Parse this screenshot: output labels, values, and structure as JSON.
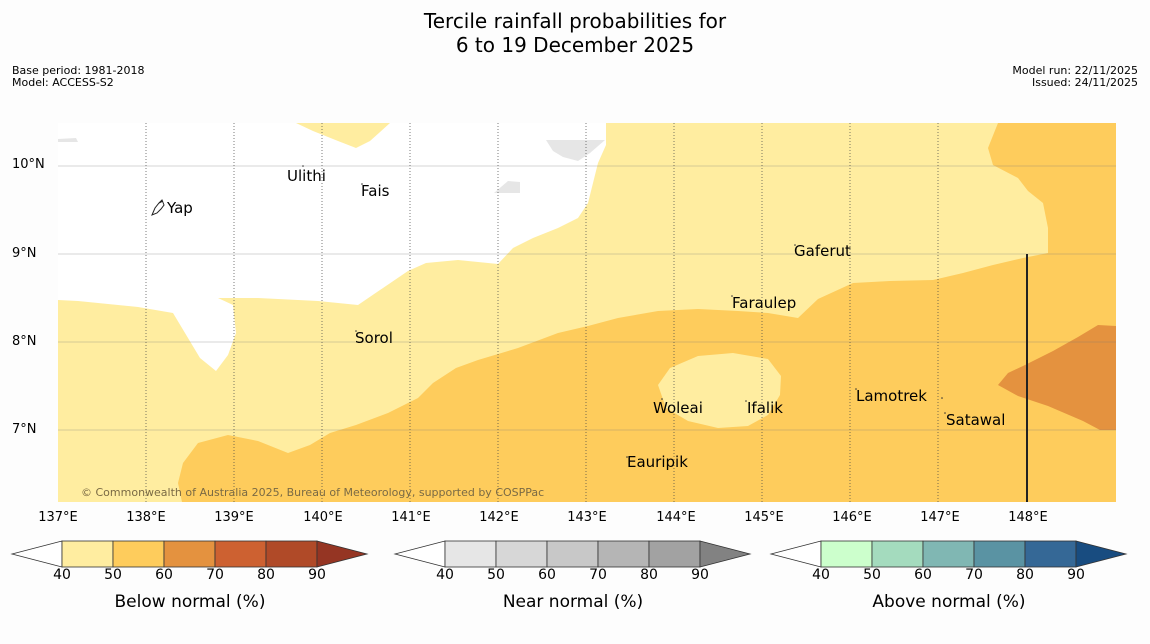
{
  "title_line1": "Tercile rainfall probabilities for",
  "title_line2": "6 to 19 December 2025",
  "meta_left": [
    "Base period: 1981-2018",
    "Model: ACCESS-S2"
  ],
  "meta_right": [
    "Model run: 22/11/2025",
    "Issued: 24/11/2025"
  ],
  "copyright": "© Commonwealth of Australia 2025, Bureau of Meteorology, supported by COSPPac",
  "lat_labels": [
    "10°N",
    "9°N",
    "8°N",
    "7°N"
  ],
  "lon_labels": [
    "137°E",
    "138°E",
    "139°E",
    "140°E",
    "141°E",
    "142°E",
    "143°E",
    "144°E",
    "145°E",
    "146°E",
    "147°E",
    "148°E"
  ],
  "places": [
    {
      "name": "Yap"
    },
    {
      "name": "Ulithi"
    },
    {
      "name": "Fais"
    },
    {
      "name": "Gaferut"
    },
    {
      "name": "Faraulep"
    },
    {
      "name": "Sorol"
    },
    {
      "name": "Woleai"
    },
    {
      "name": "Ifalik"
    },
    {
      "name": "Lamotrek"
    },
    {
      "name": "Satawal"
    },
    {
      "name": "Eauripik"
    }
  ],
  "colorbars": [
    {
      "label": "Below normal (%)",
      "colors": [
        "#ffeda0",
        "#fecc5c",
        "#e4923f",
        "#cd6131",
        "#b04a28",
        "#953523"
      ],
      "ticks": [
        "40",
        "50",
        "60",
        "70",
        "80",
        "90"
      ]
    },
    {
      "label": "Near normal (%)",
      "colors": [
        "#e6e6e6",
        "#d7d7d7",
        "#c8c8c8",
        "#b5b5b5",
        "#a2a2a2",
        "#828282"
      ],
      "ticks": [
        "40",
        "50",
        "60",
        "70",
        "80",
        "90"
      ]
    },
    {
      "label": "Above normal (%)",
      "colors": [
        "#ccffcc",
        "#a4dbbe",
        "#80b7b3",
        "#5a93a3",
        "#356896",
        "#184c80"
      ],
      "ticks": [
        "40",
        "50",
        "60",
        "70",
        "80",
        "90"
      ]
    }
  ]
}
